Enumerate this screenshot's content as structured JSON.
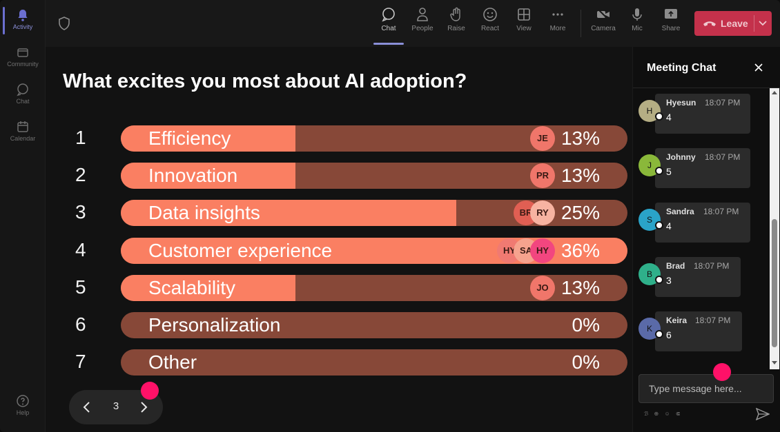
{
  "rail": {
    "items": [
      {
        "label": "Activity",
        "icon": "bell-icon"
      },
      {
        "label": "Community",
        "icon": "community-icon"
      },
      {
        "label": "Chat",
        "icon": "chat-icon"
      },
      {
        "label": "Calendar",
        "icon": "calendar-icon"
      },
      {
        "label": "Help",
        "icon": "help-icon"
      }
    ]
  },
  "toolbar": {
    "chat": "Chat",
    "people": "People",
    "raise": "Raise",
    "react": "React",
    "view": "View",
    "more": "More",
    "camera": "Camera",
    "mic": "Mic",
    "share": "Share",
    "leave": "Leave"
  },
  "poll": {
    "question": "What excites you most about AI adoption?",
    "options": [
      {
        "num": "1",
        "label": "Efficiency",
        "percent": "13%",
        "fraction": 0.13,
        "voters": [
          "JE"
        ]
      },
      {
        "num": "2",
        "label": "Innovation",
        "percent": "13%",
        "fraction": 0.13,
        "voters": [
          "PR"
        ]
      },
      {
        "num": "3",
        "label": "Data insights",
        "percent": "25%",
        "fraction": 0.25,
        "voters": [
          "BR",
          "RY"
        ]
      },
      {
        "num": "4",
        "label": "Customer experience",
        "percent": "36%",
        "fraction": 0.36,
        "voters": [
          "HY",
          "SA",
          "HY"
        ]
      },
      {
        "num": "5",
        "label": "Scalability",
        "percent": "13%",
        "fraction": 0.13,
        "voters": [
          "JO"
        ]
      },
      {
        "num": "6",
        "label": "Personalization",
        "percent": "0%",
        "fraction": 0,
        "voters": []
      },
      {
        "num": "7",
        "label": "Other",
        "percent": "0%",
        "fraction": 0,
        "voters": []
      }
    ],
    "page": "3"
  },
  "chat": {
    "title": "Meeting Chat",
    "messages": [
      {
        "initial": "H",
        "name": "Hyesun",
        "time": "18:07 PM",
        "text": "4",
        "color": "#b5ae84"
      },
      {
        "initial": "J",
        "name": "Johnny",
        "time": "18:07 PM",
        "text": "5",
        "color": "#8ab83a"
      },
      {
        "initial": "S",
        "name": "Sandra",
        "time": "18:07 PM",
        "text": "4",
        "color": "#2aa3c8"
      },
      {
        "initial": "B",
        "name": "Brad",
        "time": "18:07 PM",
        "text": "3",
        "color": "#2fb08a"
      },
      {
        "initial": "K",
        "name": "Keira",
        "time": "18:07 PM",
        "text": "6",
        "color": "#5a6aa8"
      }
    ],
    "input_placeholder": "Type message here...",
    "format_tools": "ℬ ⊕ ☺ ⋐"
  },
  "colors": {
    "bar_fill": "#fa7f62",
    "bar_track": "#874838",
    "leave": "#c4314b",
    "accent": "#8a8fd8",
    "cursor": "#ff1168"
  }
}
